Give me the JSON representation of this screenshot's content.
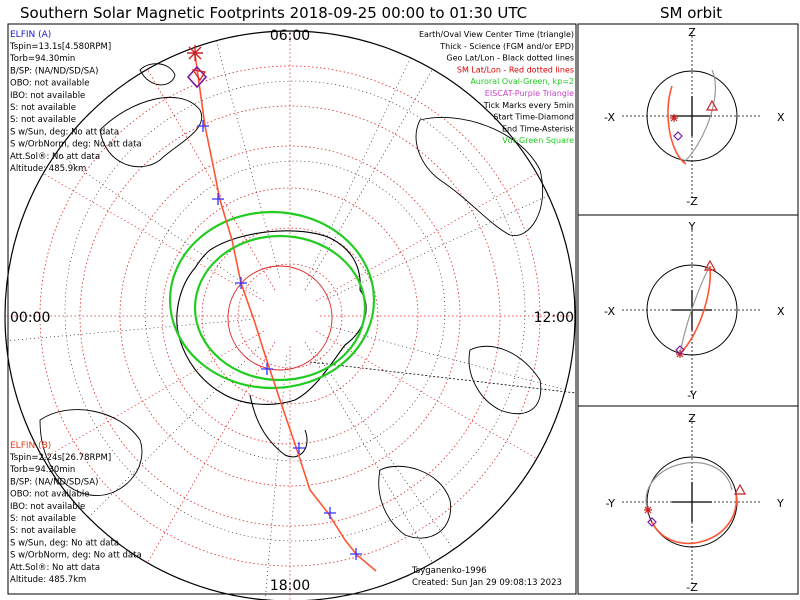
{
  "title": "Southern Solar Magnetic Footprints 2018-09-25 00:00 to 01:30 UTC",
  "orbit_title": "SM orbit",
  "clock_labels": {
    "top": "06:00",
    "left": "00:00",
    "right": "12:00",
    "bottom": "18:00"
  },
  "panel_a": {
    "name": "ELFIN (A)",
    "color": "#1a1acc",
    "lines": [
      "Tspin=13.1s[4.580RPM]",
      "Torb=94.30min",
      "B/SP: (NA/ND/SD/SA)",
      "OBO: not available",
      "IBO: not available",
      "S: not available",
      "S: not available",
      "S w/Sun, deg: No att data",
      "S w/OrbNorm, deg: No att data",
      "Att.Sol®: No att data",
      "Altitude: 485.9km"
    ]
  },
  "panel_b": {
    "name": "ELFIN (B)",
    "color": "#e84020",
    "lines": [
      "Tspin=2.24s[26.78RPM]",
      "Torb=94.30min",
      "B/SP: (NA/ND/SD/SA)",
      "OBO: not available",
      "IBO: not available",
      "S: not available",
      "S: not available",
      "S w/Sun, deg: No att data",
      "S w/OrbNorm, deg: No att data",
      "Att.Sol®: No att data",
      "Altitude: 485.7km"
    ]
  },
  "legend": [
    {
      "text": "Earth/Oval View Center Time (triangle)",
      "color": "#000000"
    },
    {
      "text": "Thick - Science (FGM and/or EPD)",
      "color": "#000000"
    },
    {
      "text": "Geo Lat/Lon - Black dotted lines",
      "color": "#000000"
    },
    {
      "text": "SM Lat/Lon - Red dotted lines",
      "color": "#dd0000"
    },
    {
      "text": "Auroral Oval-Green, kp=2",
      "color": "#22cc22"
    },
    {
      "text": "EISCAT-Purple Triangle",
      "color": "#cc44cc"
    },
    {
      "text": "Tick Marks every 5min",
      "color": "#000000"
    },
    {
      "text": "Start Time-Diamond",
      "color": "#000000"
    },
    {
      "text": "End Time-Asterisk",
      "color": "#000000"
    },
    {
      "text": "Vdt-Green Square",
      "color": "#22cc22"
    }
  ],
  "footer": {
    "author": "Tsyganenko-1996",
    "created": "Created: Sun Jan 29 09:08:13 2023"
  },
  "orbit_panels": [
    {
      "top": "Z",
      "bottom": "-Z",
      "left": "-X",
      "right": "X"
    },
    {
      "top": "Y",
      "bottom": "-Y",
      "left": "-X",
      "right": "X"
    },
    {
      "top": "Z",
      "bottom": "-Z",
      "left": "-Y",
      "right": "Y"
    }
  ],
  "colors": {
    "track": "#ff5533",
    "tick": "#3333ff",
    "oval": "#22cc22",
    "sm_grid": "#dd2222",
    "diamond": "#7a1aa0",
    "start_end": "#cc2222"
  }
}
